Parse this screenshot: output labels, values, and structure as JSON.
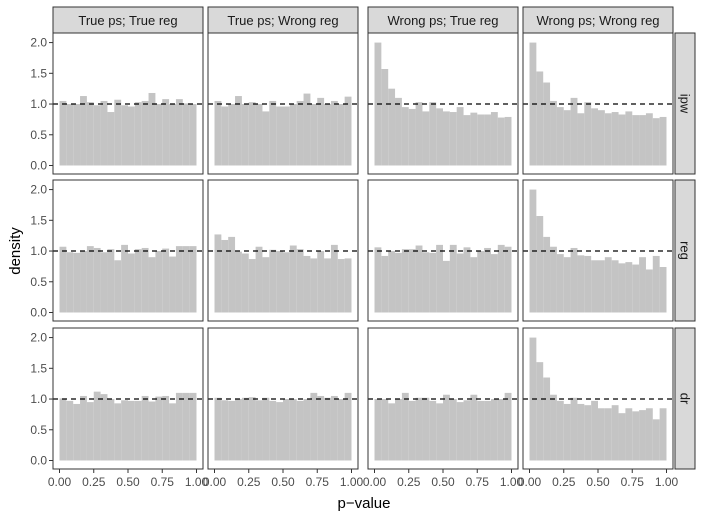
{
  "chart_data": {
    "type": "histogram-facet-grid",
    "xlabel": "p−value",
    "ylabel": "density",
    "xlim": [
      0,
      1
    ],
    "ylim": [
      0,
      2.05
    ],
    "x_ticks": [
      "0.00",
      "0.25",
      "0.50",
      "0.75",
      "1.00"
    ],
    "y_ticks": [
      "0.0",
      "0.5",
      "1.0",
      "1.5",
      "2.0"
    ],
    "reference_line": 1.0,
    "bar_color": "#c4c4c4",
    "bin_width": 0.05,
    "columns": [
      "True ps; True reg",
      "True ps; Wrong reg",
      "Wrong ps; True reg",
      "Wrong ps; Wrong reg"
    ],
    "rows": [
      "ipw",
      "reg",
      "dr"
    ],
    "panels": [
      [
        [
          1.05,
          1.0,
          1.0,
          1.13,
          1.03,
          0.98,
          1.05,
          0.87,
          1.07,
          0.98,
          0.96,
          1.03,
          1.05,
          1.18,
          1.0,
          1.08,
          1.0,
          1.08,
          1.01,
          1.0
        ],
        [
          1.05,
          0.96,
          1.0,
          1.13,
          1.0,
          1.03,
          1.0,
          0.88,
          1.05,
          0.96,
          0.96,
          1.0,
          1.05,
          1.17,
          1.0,
          1.1,
          1.0,
          1.05,
          1.0,
          1.12
        ],
        [
          2.0,
          1.57,
          1.25,
          1.1,
          0.95,
          0.92,
          1.03,
          0.88,
          1.03,
          0.93,
          0.88,
          0.87,
          0.95,
          0.82,
          0.86,
          0.83,
          0.83,
          0.87,
          0.78,
          0.79
        ],
        [
          2.0,
          1.53,
          1.35,
          1.05,
          0.95,
          0.9,
          1.1,
          0.85,
          1.03,
          0.93,
          0.9,
          0.85,
          0.87,
          0.83,
          0.88,
          0.82,
          0.82,
          0.85,
          0.77,
          0.79
        ]
      ],
      [
        [
          1.07,
          0.98,
          0.97,
          1.0,
          1.08,
          1.05,
          0.98,
          1.03,
          0.85,
          1.1,
          0.96,
          1.03,
          1.05,
          0.9,
          1.0,
          1.04,
          0.91,
          1.08,
          1.08,
          1.08
        ],
        [
          1.27,
          1.18,
          1.23,
          0.99,
          0.96,
          0.87,
          1.07,
          0.9,
          1.02,
          1.0,
          0.98,
          1.09,
          1.03,
          0.92,
          0.88,
          1.0,
          0.88,
          1.1,
          0.87,
          0.88
        ],
        [
          1.06,
          0.92,
          1.0,
          0.97,
          1.03,
          1.03,
          1.09,
          0.98,
          0.97,
          1.1,
          0.84,
          1.1,
          0.96,
          1.06,
          0.9,
          1.0,
          1.05,
          0.95,
          1.1,
          1.07
        ],
        [
          2.0,
          1.57,
          1.23,
          1.07,
          0.95,
          0.9,
          1.05,
          0.93,
          0.92,
          0.85,
          0.85,
          0.9,
          0.85,
          0.8,
          0.82,
          0.78,
          0.9,
          0.7,
          0.92,
          0.74
        ]
      ],
      [
        [
          1.01,
          0.97,
          0.92,
          1.05,
          0.95,
          1.12,
          1.08,
          1.0,
          0.93,
          0.98,
          0.97,
          0.97,
          1.05,
          0.96,
          1.04,
          1.05,
          0.93,
          1.1,
          1.1,
          1.1
        ],
        [
          1.02,
          0.98,
          0.97,
          1.0,
          1.02,
          1.03,
          0.98,
          1.02,
          0.97,
          0.95,
          1.0,
          1.0,
          0.97,
          1.0,
          1.1,
          1.05,
          1.02,
          1.05,
          1.0,
          1.1
        ],
        [
          1.0,
          1.0,
          0.93,
          1.0,
          1.1,
          0.97,
          1.02,
          1.02,
          0.97,
          0.93,
          1.07,
          1.0,
          0.95,
          0.98,
          1.07,
          0.97,
          0.97,
          1.0,
          1.0,
          1.1
        ],
        [
          2.0,
          1.6,
          1.35,
          1.07,
          0.97,
          0.92,
          1.02,
          0.92,
          0.9,
          0.97,
          0.85,
          0.85,
          0.9,
          0.77,
          0.85,
          0.8,
          0.82,
          0.85,
          0.67,
          0.85
        ]
      ]
    ]
  }
}
